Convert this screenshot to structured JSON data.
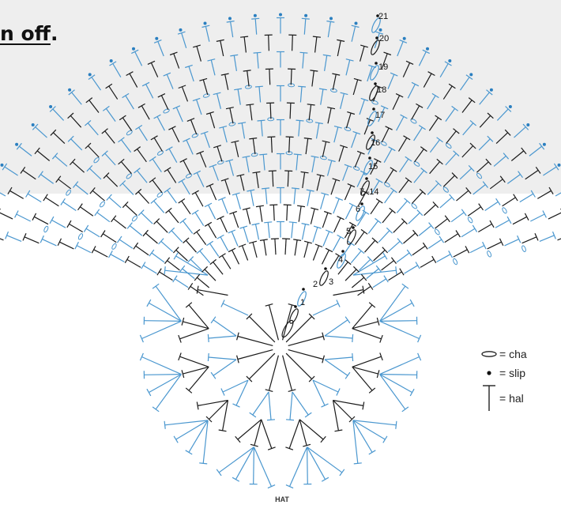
{
  "instruction_fragment": {
    "link_text": "n off",
    "trailing": "."
  },
  "diagram": {
    "caption": "HAT",
    "row_labels": [
      "1",
      "2",
      "3",
      "4",
      "5",
      "6",
      "7–14",
      "15",
      "16",
      "17",
      "18",
      "19",
      "20",
      "21"
    ],
    "colors": {
      "black_rows": "#1a1a1a",
      "blue_rows": "#4a97cf",
      "slip_stitch_dot": "#2a7fc0",
      "band_background": "#eeeeee"
    }
  },
  "legend": {
    "items": [
      {
        "symbol": "chain-icon",
        "text": "= cha"
      },
      {
        "symbol": "slip-stitch-icon",
        "text": "= slip"
      },
      {
        "symbol": "half-double-crochet-icon",
        "text": "= hal"
      }
    ]
  }
}
